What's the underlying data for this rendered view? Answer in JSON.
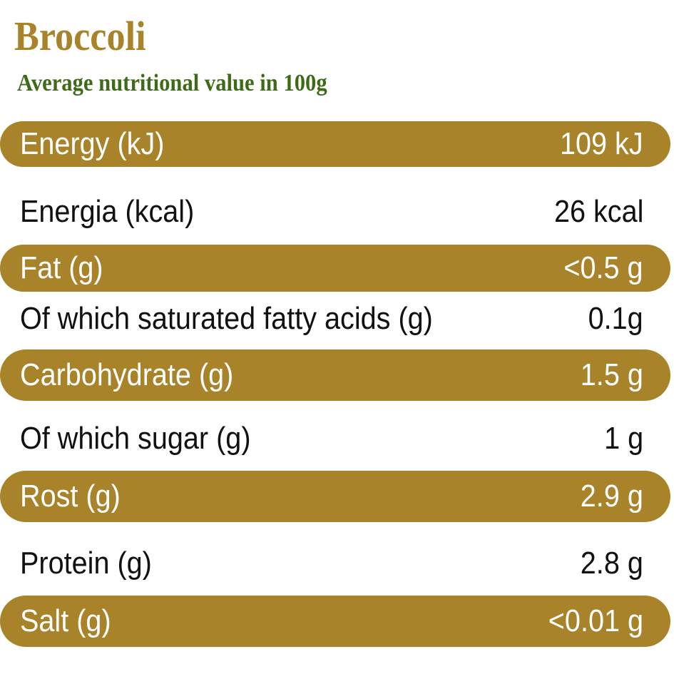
{
  "title": "Broccoli",
  "subtitle": "Average nutritional value in 100g",
  "colors": {
    "title": "#a8832a",
    "subtitle": "#3f6b18",
    "band": "#a8832a",
    "band_text": "#ffffff",
    "plain_text": "#111111"
  },
  "rows": [
    {
      "label": "Energy (kJ)",
      "value": "109 kJ",
      "highlighted": true
    },
    {
      "label": "Energia (kcal)",
      "value": "26 kcal",
      "highlighted": false
    },
    {
      "label": "Fat (g)",
      "value": "<0.5 g",
      "highlighted": true
    },
    {
      "label": "Of which saturated fatty acids (g)",
      "value": "0.1g",
      "highlighted": false
    },
    {
      "label": "Carbohydrate (g)",
      "value": "1.5 g",
      "highlighted": true
    },
    {
      "label": "Of which sugar (g)",
      "value": "1 g",
      "highlighted": false
    },
    {
      "label": "Rost (g)",
      "value": "2.9 g",
      "highlighted": true
    },
    {
      "label": "Protein (g)",
      "value": "2.8 g",
      "highlighted": false
    },
    {
      "label": "Salt (g)",
      "value": "<0.01 g",
      "highlighted": true
    }
  ]
}
